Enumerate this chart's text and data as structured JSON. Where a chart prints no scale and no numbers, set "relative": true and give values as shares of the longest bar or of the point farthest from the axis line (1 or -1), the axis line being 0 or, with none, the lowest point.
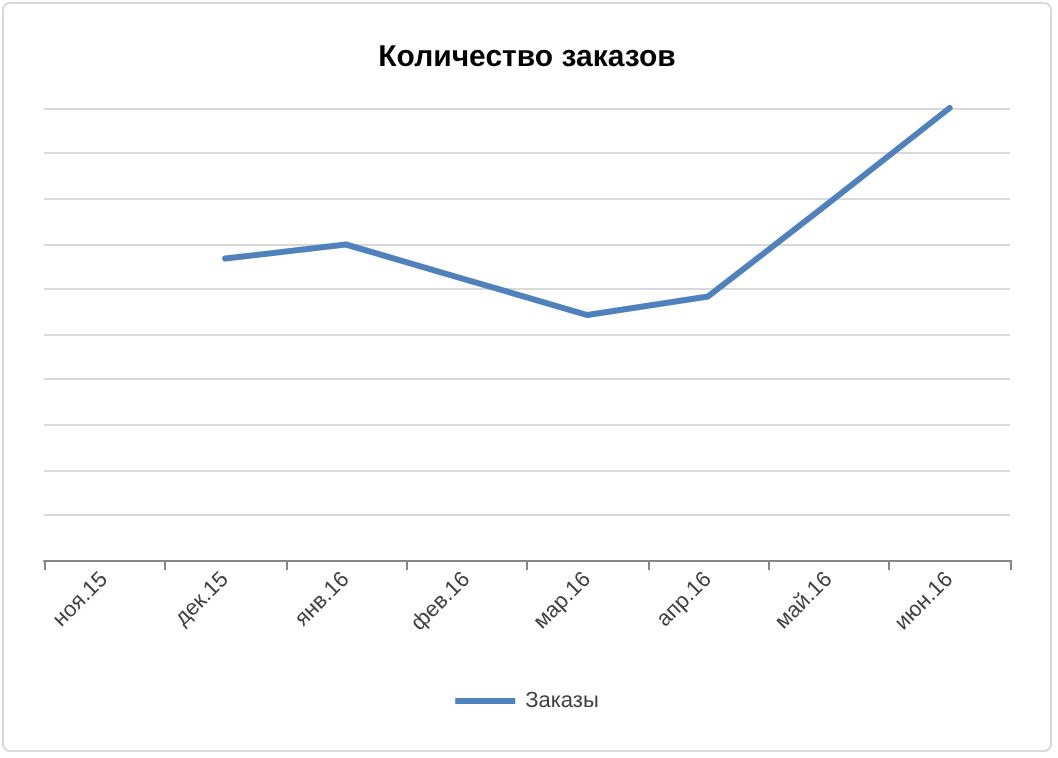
{
  "chart_data": {
    "type": "line",
    "title": "Количество заказов",
    "categories": [
      "ноя.15",
      "дек.15",
      "янв.16",
      "фев.16",
      "мар.16",
      "апр.16",
      "май.16",
      "июн.16"
    ],
    "series": [
      {
        "name": "Заказы",
        "color": "#4f81bd",
        "values": [
          null,
          0.667,
          0.698,
          0.62,
          0.542,
          0.583,
          0.79,
          1
        ]
      }
    ],
    "relative": true,
    "grid": "y",
    "legend": "bottom",
    "marker": "none",
    "line_style": "solid"
  }
}
